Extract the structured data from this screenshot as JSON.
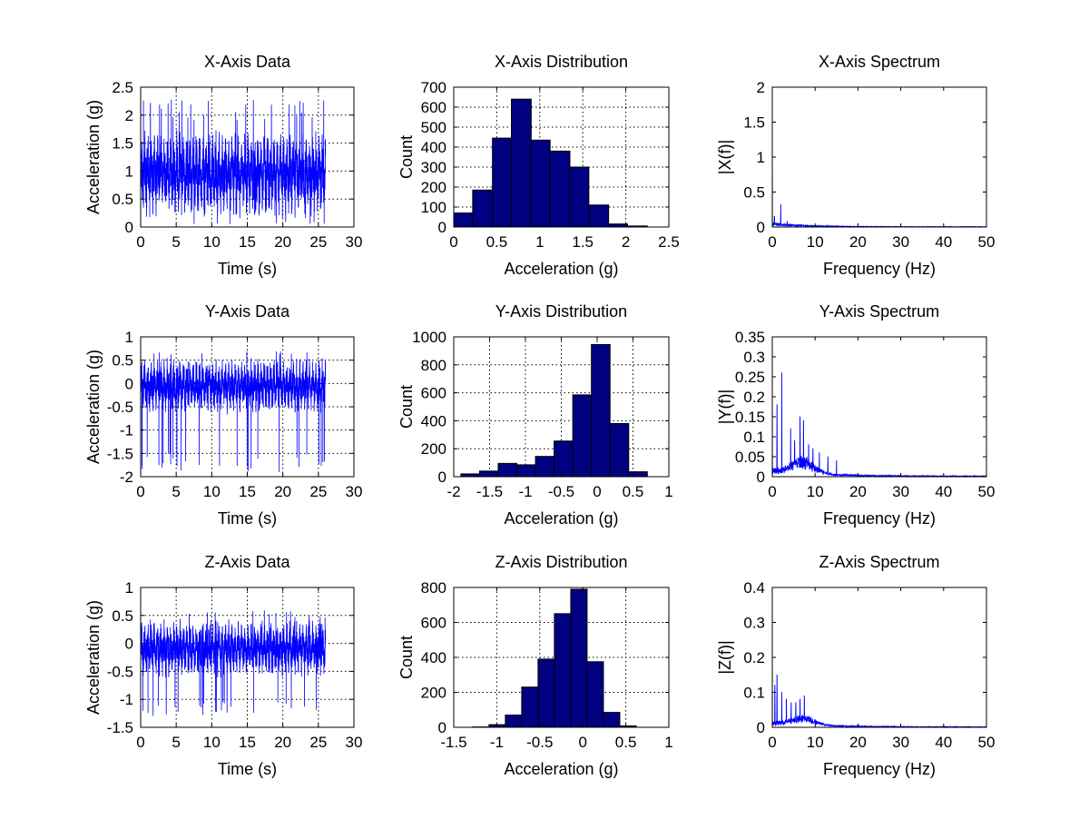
{
  "colors": {
    "line": "#0000ff",
    "bar": "#000080",
    "bar_edge": "#000000",
    "grid": "#000000"
  },
  "chart_data": [
    {
      "type": "line",
      "title": "X-Axis Data",
      "xlabel": "Time (s)",
      "ylabel": "Acceleration (g)",
      "xlim": [
        0,
        30
      ],
      "ylim": [
        0,
        2.5
      ],
      "xticks": [
        0,
        5,
        10,
        15,
        20,
        25,
        30
      ],
      "yticks": [
        0,
        0.5,
        1,
        1.5,
        2,
        2.5
      ],
      "xticklabels": [
        "0",
        "5",
        "10",
        "15",
        "20",
        "25",
        "30"
      ],
      "yticklabels": [
        "0",
        "0.5",
        "1",
        "1.5",
        "2",
        "2.5"
      ],
      "grid": true,
      "signal": {
        "kind": "time",
        "t_end": 26,
        "n": 2600,
        "mean": 0.95,
        "amp": 0.45,
        "min": 0.05,
        "max": 2.3,
        "seed": 11
      }
    },
    {
      "type": "bar",
      "title": "X-Axis Distribution",
      "xlabel": "Acceleration (g)",
      "ylabel": "Count",
      "xlim": [
        0,
        2.5
      ],
      "ylim": [
        0,
        700
      ],
      "xticks": [
        0,
        0.5,
        1,
        1.5,
        2,
        2.5
      ],
      "yticks": [
        0,
        100,
        200,
        300,
        400,
        500,
        600,
        700
      ],
      "xticklabels": [
        "0",
        "0.5",
        "1",
        "1.5",
        "2",
        "2.5"
      ],
      "yticklabels": [
        "0",
        "100",
        "200",
        "300",
        "400",
        "500",
        "600",
        "700"
      ],
      "grid": true,
      "bin_edges": [
        0,
        0.22,
        0.45,
        0.67,
        0.9,
        1.12,
        1.35,
        1.57,
        1.8,
        2.02,
        2.25
      ],
      "values": [
        70,
        185,
        445,
        640,
        435,
        380,
        300,
        110,
        15,
        5
      ]
    },
    {
      "type": "line",
      "title": "X-Axis Spectrum",
      "xlabel": "Frequency (Hz)",
      "ylabel": "|X(f)|",
      "xlim": [
        0,
        50
      ],
      "ylim": [
        0,
        2
      ],
      "xticks": [
        0,
        10,
        20,
        30,
        40,
        50
      ],
      "yticks": [
        0,
        0.5,
        1,
        1.5,
        2
      ],
      "xticklabels": [
        "0",
        "10",
        "20",
        "30",
        "40",
        "50"
      ],
      "yticklabels": [
        "0",
        "0.5",
        "1",
        "1.5",
        "2"
      ],
      "grid": false,
      "signal": {
        "kind": "spectrum",
        "n": 1300,
        "dc": 1.9,
        "noise": 0.04,
        "decay": 8,
        "peaks": [
          [
            2,
            0.32
          ],
          [
            0.5,
            0.15
          ],
          [
            3.5,
            0.08
          ]
        ],
        "seed": 21
      }
    },
    {
      "type": "line",
      "title": "Y-Axis Data",
      "xlabel": "Time (s)",
      "ylabel": "Acceleration (g)",
      "xlim": [
        0,
        30
      ],
      "ylim": [
        -2,
        1
      ],
      "xticks": [
        0,
        5,
        10,
        15,
        20,
        25,
        30
      ],
      "yticks": [
        -2,
        -1.5,
        -1,
        -0.5,
        0,
        0.5,
        1
      ],
      "xticklabels": [
        "0",
        "5",
        "10",
        "15",
        "20",
        "25",
        "30"
      ],
      "yticklabels": [
        "-2",
        "-1.5",
        "-1",
        "-0.5",
        "0",
        "0.5",
        "1"
      ],
      "grid": true,
      "signal": {
        "kind": "time",
        "t_end": 26,
        "n": 2600,
        "mean": -0.05,
        "amp": 0.35,
        "min": -1.9,
        "max": 0.7,
        "dips": -1.8,
        "seed": 12
      }
    },
    {
      "type": "bar",
      "title": "Y-Axis Distribution",
      "xlabel": "Acceleration (g)",
      "ylabel": "Count",
      "xlim": [
        -2,
        1
      ],
      "ylim": [
        0,
        1000
      ],
      "xticks": [
        -2,
        -1.5,
        -1,
        -0.5,
        0,
        0.5,
        1
      ],
      "yticks": [
        0,
        200,
        400,
        600,
        800,
        1000
      ],
      "xticklabels": [
        "-2",
        "-1.5",
        "-1",
        "-0.5",
        "0",
        "0.5",
        "1"
      ],
      "yticklabels": [
        "0",
        "200",
        "400",
        "600",
        "800",
        "1000"
      ],
      "grid": true,
      "bin_edges": [
        -1.9,
        -1.64,
        -1.38,
        -1.12,
        -0.86,
        -0.6,
        -0.34,
        -0.08,
        0.18,
        0.44,
        0.7
      ],
      "values": [
        20,
        40,
        95,
        85,
        145,
        255,
        585,
        945,
        380,
        35
      ]
    },
    {
      "type": "line",
      "title": "Y-Axis Spectrum",
      "xlabel": "Frequency (Hz)",
      "ylabel": "|Y(f)|",
      "xlim": [
        0,
        50
      ],
      "ylim": [
        0,
        0.35
      ],
      "xticks": [
        0,
        10,
        20,
        30,
        40,
        50
      ],
      "yticks": [
        0,
        0.05,
        0.1,
        0.15,
        0.2,
        0.25,
        0.3,
        0.35
      ],
      "xticklabels": [
        "0",
        "10",
        "20",
        "30",
        "40",
        "50"
      ],
      "yticklabels": [
        "0",
        "0.05",
        "0.1",
        "0.15",
        "0.2",
        "0.25",
        "0.3",
        "0.35"
      ],
      "grid": false,
      "signal": {
        "kind": "spectrum",
        "n": 1300,
        "dc": 0.28,
        "noise": 0.012,
        "decay": 12,
        "hump": [
          7,
          4,
          0.03
        ],
        "peaks": [
          [
            2.2,
            0.26
          ],
          [
            1.1,
            0.18
          ],
          [
            4.3,
            0.12
          ],
          [
            6.5,
            0.15
          ],
          [
            7.3,
            0.14
          ],
          [
            5.2,
            0.09
          ],
          [
            8.5,
            0.08
          ],
          [
            9.5,
            0.07
          ],
          [
            11,
            0.06
          ],
          [
            13,
            0.05
          ],
          [
            15,
            0.04
          ]
        ],
        "seed": 22
      }
    },
    {
      "type": "line",
      "title": "Z-Axis Data",
      "xlabel": "Time (s)",
      "ylabel": "Acceleration (g)",
      "xlim": [
        0,
        30
      ],
      "ylim": [
        -1.5,
        1
      ],
      "xticks": [
        0,
        5,
        10,
        15,
        20,
        25,
        30
      ],
      "yticks": [
        -1.5,
        -1,
        -0.5,
        0,
        0.5,
        1
      ],
      "xticklabels": [
        "0",
        "5",
        "10",
        "15",
        "20",
        "25",
        "30"
      ],
      "yticklabels": [
        "-1.5",
        "-1",
        "-0.5",
        "0",
        "0.5",
        "1"
      ],
      "grid": true,
      "signal": {
        "kind": "time",
        "t_end": 26,
        "n": 2600,
        "mean": -0.1,
        "amp": 0.3,
        "min": -1.3,
        "max": 0.6,
        "seed": 13
      }
    },
    {
      "type": "bar",
      "title": "Z-Axis Distribution",
      "xlabel": "Acceleration (g)",
      "ylabel": "Count",
      "xlim": [
        -1.5,
        1
      ],
      "ylim": [
        0,
        800
      ],
      "xticks": [
        -1.5,
        -1,
        -0.5,
        0,
        0.5,
        1
      ],
      "yticks": [
        0,
        200,
        400,
        600,
        800
      ],
      "xticklabels": [
        "-1.5",
        "-1",
        "-0.5",
        "0",
        "0.5",
        "1"
      ],
      "yticklabels": [
        "0",
        "200",
        "400",
        "600",
        "800"
      ],
      "grid": true,
      "bin_edges": [
        -1.28,
        -1.09,
        -0.9,
        -0.71,
        -0.52,
        -0.33,
        -0.14,
        0.05,
        0.24,
        0.43,
        0.62
      ],
      "values": [
        2,
        15,
        70,
        230,
        390,
        650,
        790,
        375,
        85,
        8
      ]
    },
    {
      "type": "line",
      "title": "Z-Axis Spectrum",
      "xlabel": "Frequency (Hz)",
      "ylabel": "|Z(f)|",
      "xlim": [
        0,
        50
      ],
      "ylim": [
        0,
        0.4
      ],
      "xticks": [
        0,
        10,
        20,
        30,
        40,
        50
      ],
      "yticks": [
        0,
        0.1,
        0.2,
        0.3,
        0.4
      ],
      "xticklabels": [
        "0",
        "10",
        "20",
        "30",
        "40",
        "50"
      ],
      "yticklabels": [
        "0",
        "0.1",
        "0.2",
        "0.3",
        "0.4"
      ],
      "grid": false,
      "signal": {
        "kind": "spectrum",
        "n": 1300,
        "dc": 0.38,
        "noise": 0.01,
        "decay": 12,
        "hump": [
          7,
          4,
          0.02
        ],
        "peaks": [
          [
            1.1,
            0.15
          ],
          [
            2.2,
            0.1
          ],
          [
            3.3,
            0.08
          ],
          [
            4.4,
            0.07
          ],
          [
            5.5,
            0.07
          ],
          [
            6.5,
            0.08
          ],
          [
            7.5,
            0.09
          ],
          [
            0.6,
            0.12
          ]
        ],
        "seed": 23
      }
    }
  ]
}
